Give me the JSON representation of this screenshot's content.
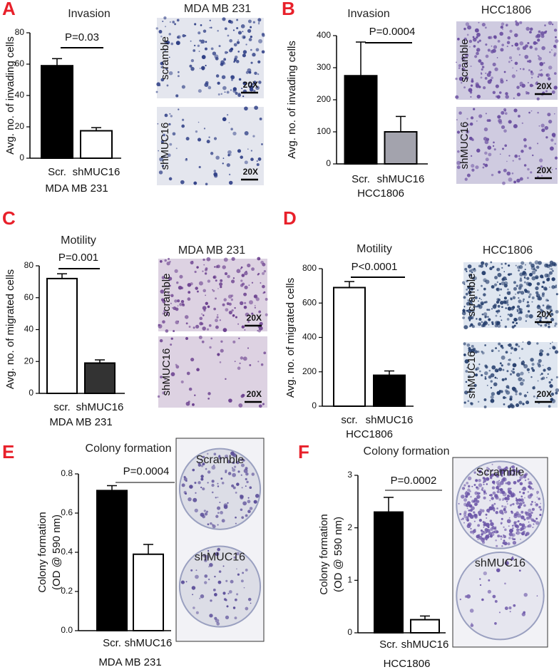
{
  "chart_data": [
    {
      "type": "bar",
      "panel": "A",
      "title": "Invasion",
      "ylabel": [
        "Avg. no. of invading cells"
      ],
      "xlabel": "MDA MB 231",
      "categories": [
        "Scr.",
        "shMUC16"
      ],
      "values": [
        59,
        17.5
      ],
      "errors": [
        4.5,
        2
      ],
      "colors": [
        "#000000",
        "#ffffff"
      ],
      "ylim": [
        0,
        80
      ],
      "yticks": [
        0,
        20,
        40,
        60,
        80
      ],
      "annotation": "P=0.03",
      "image_title": "MDA MB 231",
      "images": [
        {
          "label": "scramble",
          "scale": "20X"
        },
        {
          "label": "shMUC16",
          "scale": "20X"
        }
      ]
    },
    {
      "type": "bar",
      "panel": "B",
      "title": "Invasion",
      "ylabel": [
        "Avg. no. of invading cells"
      ],
      "xlabel": "HCC1806",
      "categories": [
        "Scr.",
        "shMUC16"
      ],
      "values": [
        275,
        100
      ],
      "errors": [
        105,
        48
      ],
      "colors": [
        "#000000",
        "#a3a3ad"
      ],
      "ylim": [
        0,
        400
      ],
      "yticks": [
        0,
        100,
        200,
        300,
        400
      ],
      "annotation": "P=0.0004",
      "image_title": "HCC1806",
      "images": [
        {
          "label": "scramble",
          "scale": "20X"
        },
        {
          "label": "shMUC16",
          "scale": "20X"
        }
      ]
    },
    {
      "type": "bar",
      "panel": "C",
      "title": "Motility",
      "ylabel": [
        "Avg. no. of migrated cells"
      ],
      "xlabel": "MDA MB 231",
      "categories": [
        "scr.",
        "shMUC16"
      ],
      "values": [
        72,
        19
      ],
      "errors": [
        3,
        2
      ],
      "colors": [
        "#ffffff",
        "#333333"
      ],
      "ylim": [
        0,
        80
      ],
      "yticks": [
        0,
        20,
        40,
        60,
        80
      ],
      "annotation": "P=0.001",
      "image_title": "MDA MB 231",
      "images": [
        {
          "label": "scramble",
          "scale": "20X"
        },
        {
          "label": "shMUC16",
          "scale": "20X"
        }
      ]
    },
    {
      "type": "bar",
      "panel": "D",
      "title": "Motility",
      "ylabel": [
        "Avg. no. of migrated cells"
      ],
      "xlabel": "HCC1806",
      "categories": [
        "scr.",
        "shMUC16"
      ],
      "values": [
        690,
        180
      ],
      "errors": [
        35,
        25
      ],
      "colors": [
        "#ffffff",
        "#000000"
      ],
      "ylim": [
        0,
        800
      ],
      "yticks": [
        0,
        200,
        400,
        600,
        800
      ],
      "annotation": "P<0.0001",
      "image_title": "HCC1806",
      "images": [
        {
          "label": "scramble",
          "scale": "20X"
        },
        {
          "label": "shMUC16",
          "scale": "20X"
        }
      ]
    },
    {
      "type": "bar",
      "panel": "E",
      "title": "Colony formation",
      "ylabel": [
        "Colony formation",
        "(OD @ 590 nm)"
      ],
      "xlabel": "MDA MB 231",
      "categories": [
        "Scr.",
        "shMUC16"
      ],
      "values": [
        0.715,
        0.39
      ],
      "errors": [
        0.025,
        0.05
      ],
      "colors": [
        "#000000",
        "#ffffff"
      ],
      "ylim": [
        0,
        0.8
      ],
      "yticks": [
        {
          "value": 0,
          "label": "0.0"
        },
        0.2,
        0.4,
        0.6,
        0.8
      ],
      "annotation": "P=0.0004",
      "images": [
        {
          "label": "Scramble"
        },
        {
          "label": "shMUC16"
        }
      ]
    },
    {
      "type": "bar",
      "panel": "F",
      "title": "Colony formation",
      "ylabel": [
        "Colony formation",
        "(OD @ 590 nm)"
      ],
      "xlabel": "HCC1806",
      "categories": [
        "Scr.",
        "shMUC16"
      ],
      "values": [
        2.3,
        0.25
      ],
      "errors": [
        0.28,
        0.07
      ],
      "colors": [
        "#000000",
        "#ffffff"
      ],
      "ylim": [
        0,
        3
      ],
      "yticks": [
        0,
        1,
        2,
        3
      ],
      "annotation": "P=0.0002",
      "images": [
        {
          "label": "Scramble"
        },
        {
          "label": "shMUC16"
        }
      ]
    }
  ]
}
